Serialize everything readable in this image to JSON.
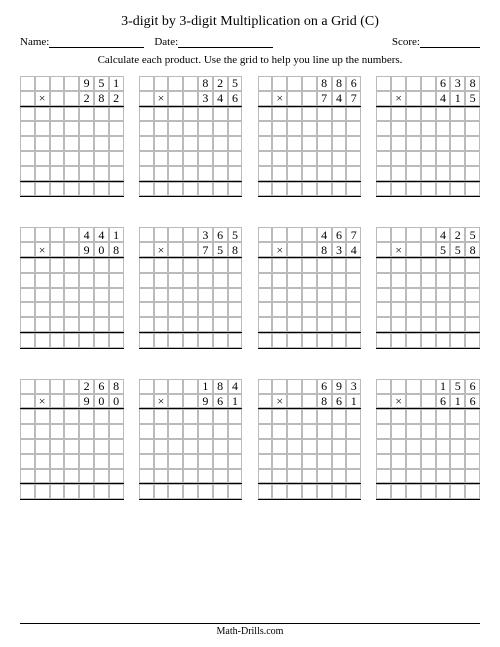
{
  "title": "3-digit by 3-digit Multiplication on a Grid (C)",
  "meta": {
    "name_label": "Name:",
    "date_label": "Date:",
    "score_label": "Score:"
  },
  "instruction": "Calculate each product.  Use the grid to help you line up the numbers.",
  "multiply_symbol": "×",
  "footer": "Math-Drills.com",
  "layout": {
    "cols_per_grid": 7,
    "top_rows": 2,
    "work_rows": 5,
    "answer_rows": 1,
    "digit_start_col": 4
  },
  "problems": [
    [
      {
        "a": "951",
        "b": "282"
      },
      {
        "a": "825",
        "b": "346"
      },
      {
        "a": "886",
        "b": "747"
      },
      {
        "a": "638",
        "b": "415"
      }
    ],
    [
      {
        "a": "441",
        "b": "908"
      },
      {
        "a": "365",
        "b": "758"
      },
      {
        "a": "467",
        "b": "834"
      },
      {
        "a": "425",
        "b": "558"
      }
    ],
    [
      {
        "a": "268",
        "b": "900"
      },
      {
        "a": "184",
        "b": "961"
      },
      {
        "a": "693",
        "b": "861"
      },
      {
        "a": "156",
        "b": "616"
      }
    ]
  ]
}
